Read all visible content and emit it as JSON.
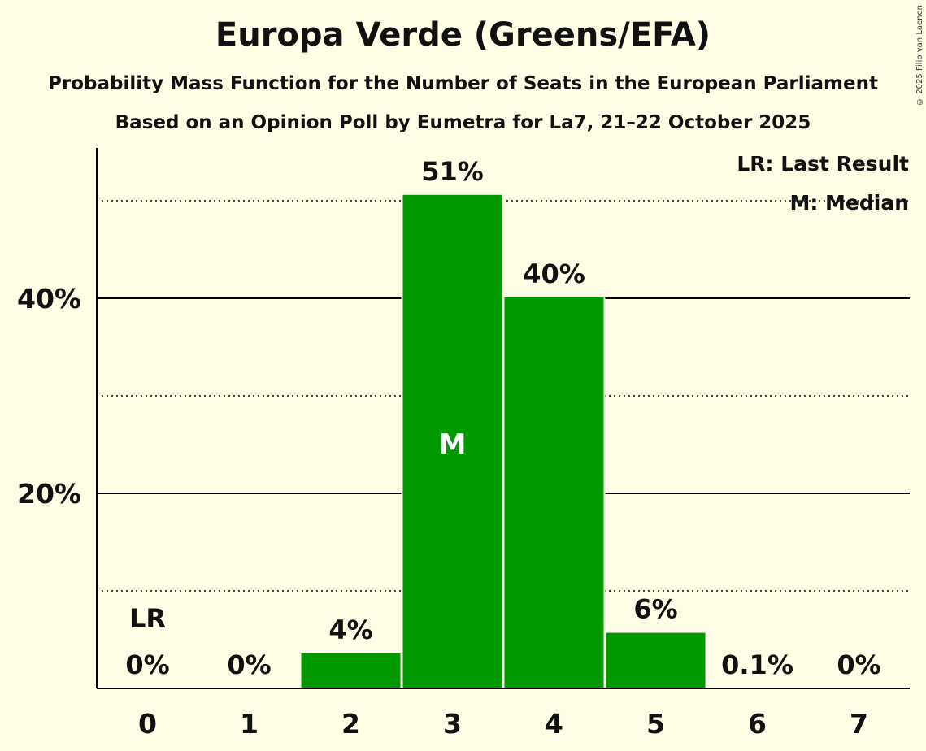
{
  "copyright": "© 2025 Filip van Laenen",
  "chart_data": {
    "type": "bar",
    "title": "Europa Verde (Greens/EFA)",
    "subtitle": "Probability Mass Function for the Number of Seats in the European Parliament",
    "source": "Based on an Opinion Poll by Eumetra for La7, 21–22 October 2025",
    "categories": [
      "0",
      "1",
      "2",
      "3",
      "4",
      "5",
      "6",
      "7"
    ],
    "values": [
      0,
      0,
      3.6,
      50.6,
      40.1,
      5.7,
      0.1,
      0
    ],
    "labels": [
      "0%",
      "0%",
      "4%",
      "51%",
      "40%",
      "6%",
      "0.1%",
      "0%"
    ],
    "ylim": [
      0,
      55
    ],
    "yticks": [
      20,
      40
    ],
    "ytick_labels": [
      "20%",
      "40%"
    ],
    "minor_gridlines": [
      10,
      30,
      50
    ],
    "bar_color": "#009900",
    "last_result": {
      "seat": "0",
      "marker": "LR"
    },
    "median": {
      "seat": "3",
      "marker": "M"
    },
    "legend": [
      "LR: Last Result",
      "M: Median"
    ],
    "legend_position": "top-right"
  }
}
